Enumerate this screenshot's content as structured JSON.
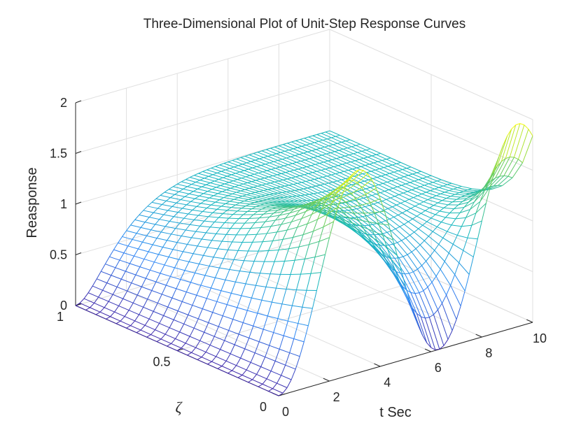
{
  "chart_data": {
    "type": "surface-mesh",
    "title": "Three-Dimensional Plot of Unit-Step Response Curves",
    "xlabel": "t Sec",
    "ylabel": "ζ",
    "zlabel": "Reasponse",
    "xlim": [
      0,
      10
    ],
    "ylim": [
      0,
      1
    ],
    "zlim": [
      0,
      2
    ],
    "x_ticks": [
      "0",
      "2",
      "4",
      "6",
      "8",
      "10"
    ],
    "y_ticks": [
      "0",
      "0.5",
      "1"
    ],
    "z_ticks": [
      "0",
      "0.5",
      "1",
      "1.5",
      "2"
    ],
    "grid": true,
    "colormap": [
      "#3e26a8",
      "#2e87f7",
      "#15b8bd",
      "#67cc5e",
      "#f8fa0d"
    ],
    "surface": "y = 1 - e^(-ζωn t)/sqrt(1-ζ^2) · sin(ωd t + arccos ζ)",
    "t_range": [
      0,
      10
    ],
    "zeta_range": [
      0,
      1
    ],
    "zeta_rows": 21,
    "t_columns": 60
  }
}
